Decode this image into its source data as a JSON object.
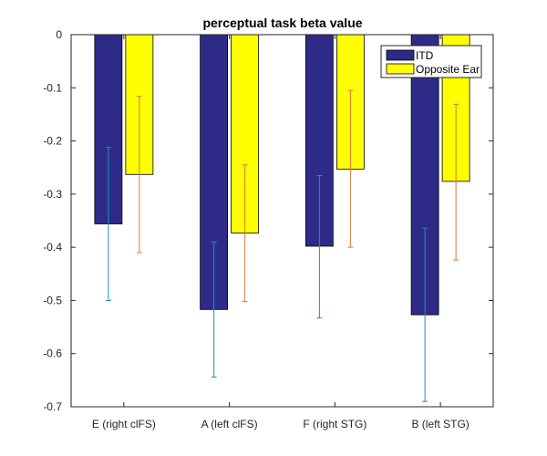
{
  "chart_data": {
    "type": "bar",
    "title": "perceptual task beta value",
    "xlabel": "",
    "ylabel": "",
    "ylim": [
      -0.7,
      0
    ],
    "yticks": [
      0,
      -0.1,
      -0.2,
      -0.3,
      -0.4,
      -0.5,
      -0.6,
      -0.7
    ],
    "ytick_labels": [
      "0",
      "-0.1",
      "-0.2",
      "-0.3",
      "-0.4",
      "-0.5",
      "-0.6",
      "-0.7"
    ],
    "categories": [
      "E (right clFS)",
      "A (left clFS)",
      "F (right STG)",
      "B (left STG)"
    ],
    "series": [
      {
        "name": "ITD",
        "color": "#2e2b88",
        "error_color": "#1f8fb4",
        "values": [
          -0.356,
          -0.517,
          -0.398,
          -0.527
        ],
        "err_low": [
          -0.5,
          -0.644,
          -0.533,
          -0.69
        ],
        "err_high": [
          -0.212,
          -0.39,
          -0.265,
          -0.364
        ]
      },
      {
        "name": "Opposite Ear",
        "color": "#ffff00",
        "error_color": "#d8793a",
        "values": [
          -0.263,
          -0.373,
          -0.253,
          -0.276
        ],
        "err_low": [
          -0.41,
          -0.502,
          -0.4,
          -0.424
        ],
        "err_high": [
          -0.116,
          -0.245,
          -0.105,
          -0.131
        ]
      }
    ],
    "legend_position": "top-right",
    "grid": false
  }
}
